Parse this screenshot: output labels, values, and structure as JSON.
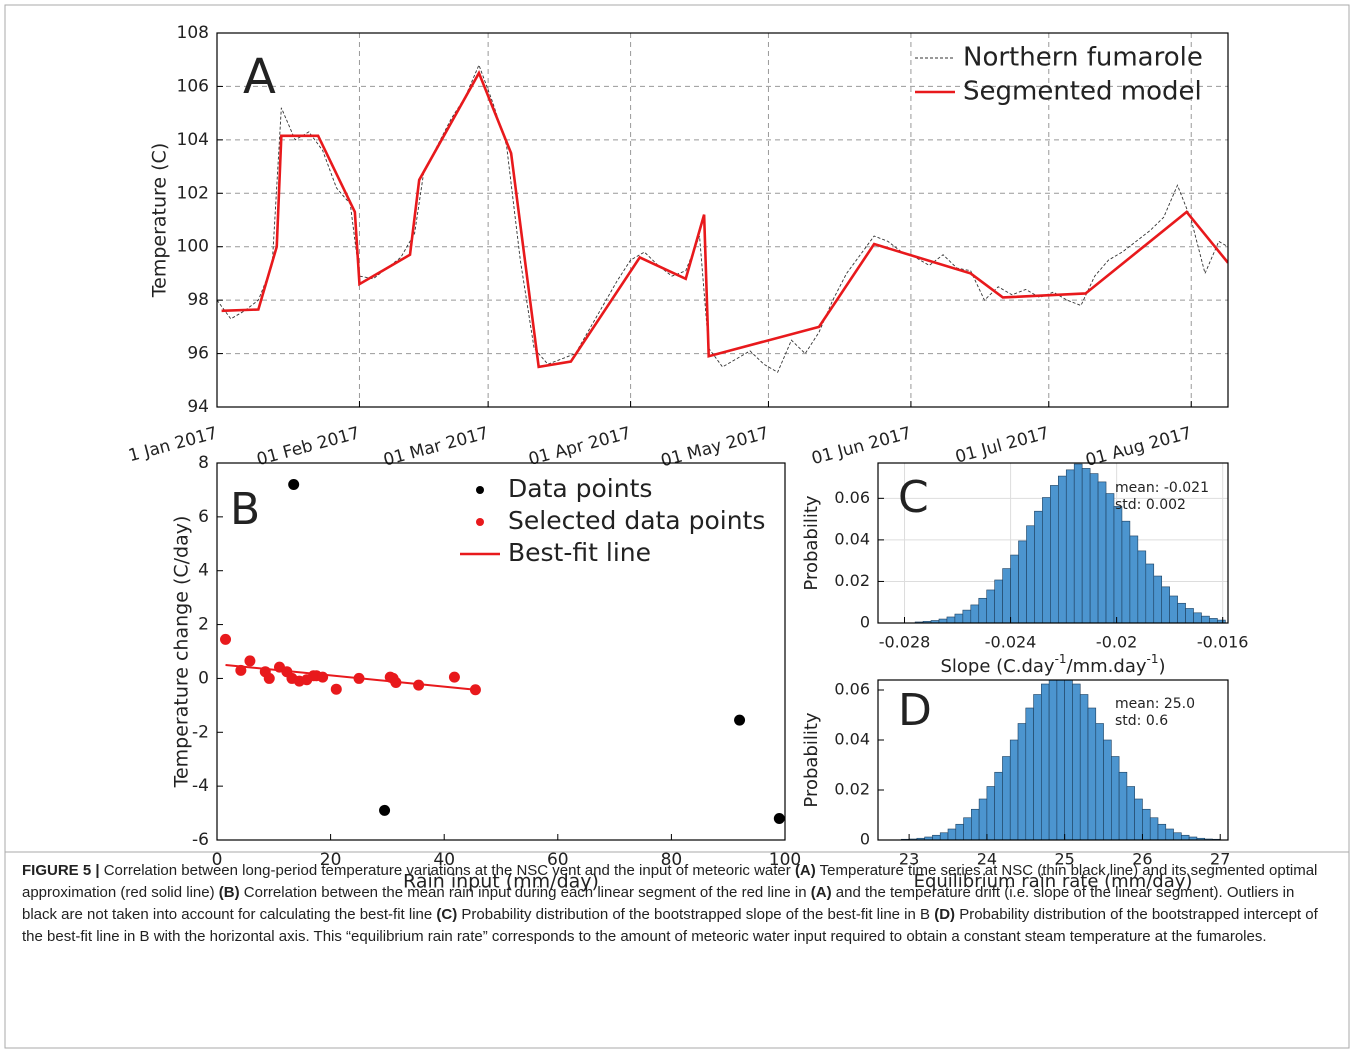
{
  "chart_data": [
    {
      "type": "line",
      "panel_label": "A",
      "y_label": "Temperature (C)",
      "xlim": [
        "2017-01-01",
        "2017-08-09"
      ],
      "ylim": [
        94,
        108
      ],
      "xticks": [
        {
          "value": "2017-01-01",
          "label": "1 Jan 2017"
        },
        {
          "value": "2017-02-01",
          "label": "01 Feb 2017"
        },
        {
          "value": "2017-03-01",
          "label": "01 Mar 2017"
        },
        {
          "value": "2017-04-01",
          "label": "01 Apr 2017"
        },
        {
          "value": "2017-05-01",
          "label": "01 May 2017"
        },
        {
          "value": "2017-06-01",
          "label": "01 Jun 2017"
        },
        {
          "value": "2017-07-01",
          "label": "01 Jul 2017"
        },
        {
          "value": "2017-08-01",
          "label": "01 Aug 2017"
        }
      ],
      "yticks": [
        94,
        96,
        98,
        100,
        102,
        104,
        106,
        108
      ],
      "grid": true,
      "legend": "upper right",
      "series": [
        {
          "name": "Northern fumarole",
          "color": "#333333",
          "dashed": true,
          "x": [
            "2017-01-01",
            "2017-01-04",
            "2017-01-07",
            "2017-01-10",
            "2017-01-13",
            "2017-01-15",
            "2017-01-18",
            "2017-01-21",
            "2017-01-24",
            "2017-01-27",
            "2017-01-30",
            "2017-02-01",
            "2017-02-04",
            "2017-02-07",
            "2017-02-10",
            "2017-02-13",
            "2017-02-15",
            "2017-02-18",
            "2017-02-21",
            "2017-02-24",
            "2017-02-27",
            "2017-03-02",
            "2017-03-05",
            "2017-03-08",
            "2017-03-11",
            "2017-03-14",
            "2017-03-17",
            "2017-03-20",
            "2017-03-23",
            "2017-03-26",
            "2017-03-29",
            "2017-04-01",
            "2017-04-04",
            "2017-04-07",
            "2017-04-10",
            "2017-04-13",
            "2017-04-16",
            "2017-04-18",
            "2017-04-21",
            "2017-04-24",
            "2017-04-27",
            "2017-04-30",
            "2017-05-03",
            "2017-05-06",
            "2017-05-09",
            "2017-05-12",
            "2017-05-15",
            "2017-05-18",
            "2017-05-21",
            "2017-05-24",
            "2017-05-27",
            "2017-05-30",
            "2017-06-02",
            "2017-06-05",
            "2017-06-08",
            "2017-06-11",
            "2017-06-14",
            "2017-06-17",
            "2017-06-20",
            "2017-06-23",
            "2017-06-26",
            "2017-06-29",
            "2017-07-02",
            "2017-07-05",
            "2017-07-08",
            "2017-07-11",
            "2017-07-14",
            "2017-07-17",
            "2017-07-20",
            "2017-07-23",
            "2017-07-26",
            "2017-07-29",
            "2017-08-01",
            "2017-08-04",
            "2017-08-07",
            "2017-08-09"
          ],
          "values": [
            98.0,
            97.3,
            97.6,
            98.0,
            99.3,
            105.2,
            104.0,
            104.3,
            103.6,
            102.2,
            101.6,
            98.9,
            98.8,
            99.2,
            99.6,
            100.5,
            102.8,
            103.8,
            104.8,
            105.6,
            106.8,
            105.4,
            103.8,
            99.5,
            96.2,
            95.6,
            95.8,
            96.0,
            96.9,
            97.8,
            98.7,
            99.5,
            99.8,
            99.3,
            98.9,
            99.1,
            100.4,
            96.2,
            95.5,
            95.8,
            96.1,
            95.6,
            95.3,
            96.5,
            96.0,
            96.8,
            98.0,
            99.0,
            99.7,
            100.4,
            100.2,
            99.8,
            99.6,
            99.3,
            99.7,
            99.2,
            99.1,
            98.0,
            98.5,
            98.2,
            98.4,
            98.1,
            98.3,
            98.0,
            97.8,
            98.9,
            99.5,
            99.8,
            100.2,
            100.6,
            101.1,
            102.3,
            101.0,
            99.0,
            100.2,
            100.0
          ]
        },
        {
          "name": "Segmented model",
          "color": "#e8191c",
          "dashed": false,
          "x": [
            "2017-01-02",
            "2017-01-10",
            "2017-01-14",
            "2017-01-15",
            "2017-01-23",
            "2017-01-31",
            "2017-02-01",
            "2017-02-12",
            "2017-02-14",
            "2017-02-27",
            "2017-03-06",
            "2017-03-12",
            "2017-03-19",
            "2017-04-03",
            "2017-04-13",
            "2017-04-17",
            "2017-04-18",
            "2017-05-12",
            "2017-05-24",
            "2017-06-14",
            "2017-06-21",
            "2017-07-09",
            "2017-07-31",
            "2017-08-09"
          ],
          "values": [
            97.6,
            97.65,
            100.0,
            104.15,
            104.15,
            101.3,
            98.6,
            99.7,
            102.5,
            106.5,
            103.5,
            95.5,
            95.7,
            99.6,
            98.8,
            101.2,
            95.9,
            97.0,
            100.1,
            99.0,
            98.1,
            98.25,
            101.3,
            99.4
          ]
        }
      ]
    },
    {
      "type": "scatter",
      "panel_label": "B",
      "x_label": "Rain input (mm/day)",
      "y_label": "Temperature change (C/day)",
      "xlim": [
        0,
        100
      ],
      "ylim": [
        -6,
        8
      ],
      "xticks": [
        0,
        20,
        40,
        60,
        80,
        100
      ],
      "yticks": [
        -6,
        -4,
        -2,
        0,
        2,
        4,
        6,
        8
      ],
      "grid": false,
      "legend": "upper right",
      "series": [
        {
          "name": "Data points",
          "color": "#000000",
          "mode": "markers",
          "x": [
            13.5,
            29.5,
            92,
            99
          ],
          "values": [
            7.2,
            -4.9,
            -1.55,
            -5.2
          ]
        },
        {
          "name": "Selected data points",
          "color": "#e8191c",
          "mode": "markers",
          "x": [
            1.5,
            4.2,
            5.8,
            8.5,
            9.2,
            11,
            12.3,
            13.2,
            14.5,
            15.8,
            17,
            17.5,
            18.6,
            21,
            25,
            30.5,
            31,
            31.5,
            35.5,
            41.8,
            45.5
          ],
          "values": [
            1.45,
            0.3,
            0.65,
            0.25,
            0.0,
            0.42,
            0.25,
            0.0,
            -0.1,
            -0.05,
            0.1,
            0.1,
            0.05,
            -0.4,
            0.0,
            0.05,
            0,
            -0.15,
            -0.25,
            0.05,
            -0.42
          ]
        },
        {
          "name": "Best-fit line",
          "color": "#e8191c",
          "mode": "line",
          "x": [
            1.5,
            45.5
          ],
          "values": [
            0.5,
            -0.42
          ]
        }
      ]
    },
    {
      "type": "histogram",
      "panel_label": "C",
      "x_label": [
        "Slope (C.day",
        "-1",
        "/mm.day",
        "-1",
        ")"
      ],
      "y_label": "Probability",
      "annotations": [
        "mean: -0.021",
        "std: 0.002"
      ],
      "color": "#4c95cf",
      "xlim": [
        -0.029,
        -0.0158
      ],
      "ylim": [
        0,
        0.077
      ],
      "xticks": [
        -0.028,
        -0.024,
        -0.02,
        -0.016
      ],
      "yticks": [
        0,
        0.02,
        0.04,
        0.06
      ],
      "grid": true,
      "bins": [
        -0.0276,
        -0.0273,
        -0.027,
        -0.0267,
        -0.0264,
        -0.0261,
        -0.0258,
        -0.0255,
        -0.0252,
        -0.0249,
        -0.0246,
        -0.0243,
        -0.024,
        -0.0237,
        -0.0234,
        -0.0231,
        -0.0228,
        -0.0225,
        -0.0222,
        -0.0219,
        -0.0216,
        -0.0213,
        -0.021,
        -0.0207,
        -0.0204,
        -0.0201,
        -0.0198,
        -0.0195,
        -0.0192,
        -0.0189,
        -0.0186,
        -0.0183,
        -0.018,
        -0.0177,
        -0.0174,
        -0.0171,
        -0.0168,
        -0.0165,
        -0.0162,
        -0.0159
      ],
      "values": [
        0.0005,
        0.0008,
        0.0012,
        0.0019,
        0.0029,
        0.0043,
        0.0062,
        0.0087,
        0.0119,
        0.0159,
        0.0207,
        0.0262,
        0.0327,
        0.0395,
        0.0468,
        0.0538,
        0.0604,
        0.0662,
        0.0707,
        0.0737,
        0.0765,
        0.0744,
        0.0719,
        0.0679,
        0.0623,
        0.0561,
        0.049,
        0.0419,
        0.0347,
        0.0284,
        0.0226,
        0.0174,
        0.013,
        0.0095,
        0.007,
        0.0049,
        0.0033,
        0.0022,
        0.0014
      ]
    },
    {
      "type": "histogram",
      "panel_label": "D",
      "x_label": "Equilibrium rain rate (mm/day)",
      "y_label": "Probability",
      "annotations": [
        "mean: 25.0",
        "std: 0.6"
      ],
      "color": "#4c95cf",
      "xlim": [
        22.6,
        27.1
      ],
      "ylim": [
        0,
        0.064
      ],
      "xticks": [
        23,
        24,
        25,
        26,
        27
      ],
      "yticks": [
        0,
        0.02,
        0.04,
        0.06
      ],
      "grid": false,
      "bins": [
        22.9,
        23,
        23.1,
        23.2,
        23.3,
        23.4,
        23.5,
        23.6,
        23.7,
        23.8,
        23.9,
        24,
        24.1,
        24.2,
        24.3,
        24.4,
        24.5,
        24.6,
        24.7,
        24.8,
        24.9,
        25,
        25.1,
        25.2,
        25.3,
        25.4,
        25.5,
        25.6,
        25.7,
        25.8,
        25.9,
        26,
        26.1,
        26.2,
        26.3,
        26.4,
        26.5,
        26.6,
        26.7,
        26.8,
        26.9,
        27
      ],
      "values": [
        0.0003,
        0.0004,
        0.0007,
        0.0012,
        0.0019,
        0.0029,
        0.0044,
        0.0063,
        0.0089,
        0.0123,
        0.0164,
        0.0214,
        0.0271,
        0.0334,
        0.04,
        0.0466,
        0.0528,
        0.0582,
        0.0624,
        0.0651,
        0.066,
        0.0651,
        0.0624,
        0.0582,
        0.0528,
        0.0466,
        0.04,
        0.0334,
        0.0271,
        0.0214,
        0.0164,
        0.0123,
        0.0089,
        0.0063,
        0.0044,
        0.0029,
        0.0019,
        0.0012,
        0.0007,
        0.0004,
        0.0003
      ]
    }
  ],
  "caption": {
    "label": "FIGURE 5 |",
    "segments": [
      "Correlation between long-period temperature variations at the NSC vent and the input of meteoric water",
      "(A)",
      "Temperature time series at NSC (thin black line) and its segmented optimal approximation (red solid line)",
      "(B)",
      "Correlation between the mean rain input during each linear segment of the red line in",
      "(A)",
      "and the temperature drift (i.e. slope of the linear segment). Outliers in black are not taken into account for calculating the best-fit line",
      "(C)",
      "Probability distribution of the bootstrapped slope of the best-fit line in B",
      "(D)",
      "Probability distribution of the bootstrapped intercept of the best-fit line in B with the horizontal axis. This “equilibrium rain rate” corresponds to the amount of meteoric water input required to obtain a constant steam temperature at the fumaroles."
    ]
  }
}
